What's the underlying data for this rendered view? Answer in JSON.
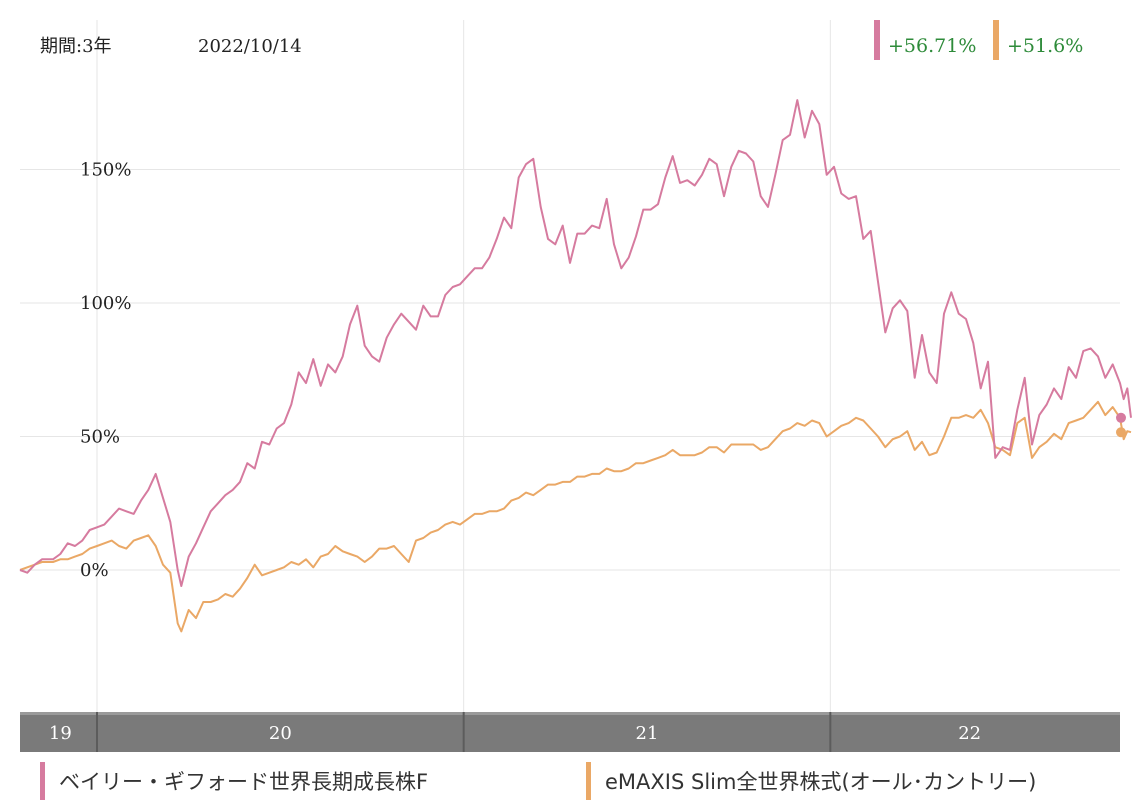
{
  "header": {
    "period_label": "期間:3年",
    "date": "2022/10/14"
  },
  "colors": {
    "fund1": "#d67b9f",
    "fund2": "#eaa866",
    "grid": "#e6e6e6",
    "positive": "#2e8b3a",
    "axis_bar": "#7a7a7a"
  },
  "chart_data": {
    "type": "line",
    "ylim": [
      -50,
      200
    ],
    "yticks": [
      0,
      50,
      100,
      150
    ],
    "ytick_labels": [
      "0%",
      "50%",
      "100%",
      "150%"
    ],
    "xlim": [
      2019.79,
      2022.79
    ],
    "year_starts": [
      2020.0,
      2021.0,
      2022.0
    ],
    "year_labels": [
      {
        "label": "19",
        "x": 2019.9
      },
      {
        "label": "20",
        "x": 2020.5
      },
      {
        "label": "21",
        "x": 2021.5
      },
      {
        "label": "22",
        "x": 2022.38
      }
    ],
    "series": [
      {
        "name": "ベイリー・ギフォード世界長期成長株F",
        "change_label": "+56.71%",
        "points": [
          [
            2019.79,
            0
          ],
          [
            2019.81,
            -1
          ],
          [
            2019.83,
            2
          ],
          [
            2019.85,
            4
          ],
          [
            2019.88,
            4
          ],
          [
            2019.9,
            6
          ],
          [
            2019.92,
            10
          ],
          [
            2019.94,
            9
          ],
          [
            2019.96,
            11
          ],
          [
            2019.98,
            15
          ],
          [
            2020.0,
            16
          ],
          [
            2020.02,
            17
          ],
          [
            2020.04,
            20
          ],
          [
            2020.06,
            23
          ],
          [
            2020.08,
            22
          ],
          [
            2020.1,
            21
          ],
          [
            2020.12,
            26
          ],
          [
            2020.14,
            30
          ],
          [
            2020.16,
            36
          ],
          [
            2020.18,
            27
          ],
          [
            2020.2,
            18
          ],
          [
            2020.22,
            0
          ],
          [
            2020.23,
            -6
          ],
          [
            2020.25,
            5
          ],
          [
            2020.27,
            10
          ],
          [
            2020.29,
            16
          ],
          [
            2020.31,
            22
          ],
          [
            2020.33,
            25
          ],
          [
            2020.35,
            28
          ],
          [
            2020.37,
            30
          ],
          [
            2020.39,
            33
          ],
          [
            2020.41,
            40
          ],
          [
            2020.43,
            38
          ],
          [
            2020.45,
            48
          ],
          [
            2020.47,
            47
          ],
          [
            2020.49,
            53
          ],
          [
            2020.51,
            55
          ],
          [
            2020.53,
            62
          ],
          [
            2020.55,
            74
          ],
          [
            2020.57,
            70
          ],
          [
            2020.59,
            79
          ],
          [
            2020.61,
            69
          ],
          [
            2020.63,
            77
          ],
          [
            2020.65,
            74
          ],
          [
            2020.67,
            80
          ],
          [
            2020.69,
            92
          ],
          [
            2020.71,
            99
          ],
          [
            2020.73,
            84
          ],
          [
            2020.75,
            80
          ],
          [
            2020.77,
            78
          ],
          [
            2020.79,
            87
          ],
          [
            2020.81,
            92
          ],
          [
            2020.83,
            96
          ],
          [
            2020.85,
            93
          ],
          [
            2020.87,
            90
          ],
          [
            2020.89,
            99
          ],
          [
            2020.91,
            95
          ],
          [
            2020.93,
            95
          ],
          [
            2020.95,
            103
          ],
          [
            2020.97,
            106
          ],
          [
            2020.99,
            107
          ],
          [
            2021.01,
            110
          ],
          [
            2021.03,
            113
          ],
          [
            2021.05,
            113
          ],
          [
            2021.07,
            117
          ],
          [
            2021.09,
            124
          ],
          [
            2021.11,
            132
          ],
          [
            2021.13,
            128
          ],
          [
            2021.15,
            147
          ],
          [
            2021.17,
            152
          ],
          [
            2021.19,
            154
          ],
          [
            2021.21,
            136
          ],
          [
            2021.23,
            124
          ],
          [
            2021.25,
            122
          ],
          [
            2021.27,
            129
          ],
          [
            2021.29,
            115
          ],
          [
            2021.31,
            126
          ],
          [
            2021.33,
            126
          ],
          [
            2021.35,
            129
          ],
          [
            2021.37,
            128
          ],
          [
            2021.39,
            139
          ],
          [
            2021.41,
            122
          ],
          [
            2021.43,
            113
          ],
          [
            2021.45,
            117
          ],
          [
            2021.47,
            125
          ],
          [
            2021.49,
            135
          ],
          [
            2021.51,
            135
          ],
          [
            2021.53,
            137
          ],
          [
            2021.55,
            147
          ],
          [
            2021.57,
            155
          ],
          [
            2021.59,
            145
          ],
          [
            2021.61,
            146
          ],
          [
            2021.63,
            144
          ],
          [
            2021.65,
            148
          ],
          [
            2021.67,
            154
          ],
          [
            2021.69,
            152
          ],
          [
            2021.71,
            140
          ],
          [
            2021.73,
            151
          ],
          [
            2021.75,
            157
          ],
          [
            2021.77,
            156
          ],
          [
            2021.79,
            153
          ],
          [
            2021.81,
            140
          ],
          [
            2021.83,
            136
          ],
          [
            2021.85,
            148
          ],
          [
            2021.87,
            161
          ],
          [
            2021.89,
            163
          ],
          [
            2021.91,
            176
          ],
          [
            2021.93,
            162
          ],
          [
            2021.95,
            172
          ],
          [
            2021.97,
            167
          ],
          [
            2021.99,
            148
          ],
          [
            2022.01,
            151
          ],
          [
            2022.03,
            141
          ],
          [
            2022.05,
            139
          ],
          [
            2022.07,
            140
          ],
          [
            2022.09,
            124
          ],
          [
            2022.11,
            127
          ],
          [
            2022.13,
            108
          ],
          [
            2022.15,
            89
          ],
          [
            2022.17,
            98
          ],
          [
            2022.19,
            101
          ],
          [
            2022.21,
            97
          ],
          [
            2022.23,
            72
          ],
          [
            2022.25,
            88
          ],
          [
            2022.27,
            74
          ],
          [
            2022.29,
            70
          ],
          [
            2022.31,
            96
          ],
          [
            2022.33,
            104
          ],
          [
            2022.35,
            96
          ],
          [
            2022.37,
            94
          ],
          [
            2022.39,
            85
          ],
          [
            2022.41,
            68
          ],
          [
            2022.43,
            78
          ],
          [
            2022.45,
            42
          ],
          [
            2022.47,
            46
          ],
          [
            2022.49,
            45
          ],
          [
            2022.51,
            60
          ],
          [
            2022.53,
            72
          ],
          [
            2022.55,
            47
          ],
          [
            2022.57,
            58
          ],
          [
            2022.59,
            62
          ],
          [
            2022.61,
            68
          ],
          [
            2022.63,
            64
          ],
          [
            2022.65,
            76
          ],
          [
            2022.67,
            72
          ],
          [
            2022.69,
            82
          ],
          [
            2022.71,
            83
          ],
          [
            2022.73,
            80
          ],
          [
            2022.75,
            72
          ],
          [
            2022.77,
            77
          ],
          [
            2022.79,
            70
          ],
          [
            2022.8,
            64
          ],
          [
            2022.81,
            68
          ],
          [
            2022.82,
            57
          ]
        ]
      },
      {
        "name": "eMAXIS Slim全世界株式(オール･カントリー)",
        "change_label": "+51.6%",
        "points": [
          [
            2019.79,
            0
          ],
          [
            2019.81,
            1
          ],
          [
            2019.83,
            2
          ],
          [
            2019.85,
            3
          ],
          [
            2019.88,
            3
          ],
          [
            2019.9,
            4
          ],
          [
            2019.92,
            4
          ],
          [
            2019.94,
            5
          ],
          [
            2019.96,
            6
          ],
          [
            2019.98,
            8
          ],
          [
            2020.0,
            9
          ],
          [
            2020.02,
            10
          ],
          [
            2020.04,
            11
          ],
          [
            2020.06,
            9
          ],
          [
            2020.08,
            8
          ],
          [
            2020.1,
            11
          ],
          [
            2020.12,
            12
          ],
          [
            2020.14,
            13
          ],
          [
            2020.16,
            9
          ],
          [
            2020.18,
            2
          ],
          [
            2020.2,
            -1
          ],
          [
            2020.22,
            -20
          ],
          [
            2020.23,
            -23
          ],
          [
            2020.25,
            -15
          ],
          [
            2020.27,
            -18
          ],
          [
            2020.29,
            -12
          ],
          [
            2020.31,
            -12
          ],
          [
            2020.33,
            -11
          ],
          [
            2020.35,
            -9
          ],
          [
            2020.37,
            -10
          ],
          [
            2020.39,
            -7
          ],
          [
            2020.41,
            -3
          ],
          [
            2020.43,
            2
          ],
          [
            2020.45,
            -2
          ],
          [
            2020.47,
            -1
          ],
          [
            2020.49,
            0
          ],
          [
            2020.51,
            1
          ],
          [
            2020.53,
            3
          ],
          [
            2020.55,
            2
          ],
          [
            2020.57,
            4
          ],
          [
            2020.59,
            1
          ],
          [
            2020.61,
            5
          ],
          [
            2020.63,
            6
          ],
          [
            2020.65,
            9
          ],
          [
            2020.67,
            7
          ],
          [
            2020.69,
            6
          ],
          [
            2020.71,
            5
          ],
          [
            2020.73,
            3
          ],
          [
            2020.75,
            5
          ],
          [
            2020.77,
            8
          ],
          [
            2020.79,
            8
          ],
          [
            2020.81,
            9
          ],
          [
            2020.83,
            6
          ],
          [
            2020.85,
            3
          ],
          [
            2020.87,
            11
          ],
          [
            2020.89,
            12
          ],
          [
            2020.91,
            14
          ],
          [
            2020.93,
            15
          ],
          [
            2020.95,
            17
          ],
          [
            2020.97,
            18
          ],
          [
            2020.99,
            17
          ],
          [
            2021.01,
            19
          ],
          [
            2021.03,
            21
          ],
          [
            2021.05,
            21
          ],
          [
            2021.07,
            22
          ],
          [
            2021.09,
            22
          ],
          [
            2021.11,
            23
          ],
          [
            2021.13,
            26
          ],
          [
            2021.15,
            27
          ],
          [
            2021.17,
            29
          ],
          [
            2021.19,
            28
          ],
          [
            2021.21,
            30
          ],
          [
            2021.23,
            32
          ],
          [
            2021.25,
            32
          ],
          [
            2021.27,
            33
          ],
          [
            2021.29,
            33
          ],
          [
            2021.31,
            35
          ],
          [
            2021.33,
            35
          ],
          [
            2021.35,
            36
          ],
          [
            2021.37,
            36
          ],
          [
            2021.39,
            38
          ],
          [
            2021.41,
            37
          ],
          [
            2021.43,
            37
          ],
          [
            2021.45,
            38
          ],
          [
            2021.47,
            40
          ],
          [
            2021.49,
            40
          ],
          [
            2021.51,
            41
          ],
          [
            2021.53,
            42
          ],
          [
            2021.55,
            43
          ],
          [
            2021.57,
            45
          ],
          [
            2021.59,
            43
          ],
          [
            2021.61,
            43
          ],
          [
            2021.63,
            43
          ],
          [
            2021.65,
            44
          ],
          [
            2021.67,
            46
          ],
          [
            2021.69,
            46
          ],
          [
            2021.71,
            44
          ],
          [
            2021.73,
            47
          ],
          [
            2021.75,
            47
          ],
          [
            2021.77,
            47
          ],
          [
            2021.79,
            47
          ],
          [
            2021.81,
            45
          ],
          [
            2021.83,
            46
          ],
          [
            2021.85,
            49
          ],
          [
            2021.87,
            52
          ],
          [
            2021.89,
            53
          ],
          [
            2021.91,
            55
          ],
          [
            2021.93,
            54
          ],
          [
            2021.95,
            56
          ],
          [
            2021.97,
            55
          ],
          [
            2021.99,
            50
          ],
          [
            2022.01,
            52
          ],
          [
            2022.03,
            54
          ],
          [
            2022.05,
            55
          ],
          [
            2022.07,
            57
          ],
          [
            2022.09,
            56
          ],
          [
            2022.11,
            53
          ],
          [
            2022.13,
            50
          ],
          [
            2022.15,
            46
          ],
          [
            2022.17,
            49
          ],
          [
            2022.19,
            50
          ],
          [
            2022.21,
            52
          ],
          [
            2022.23,
            45
          ],
          [
            2022.25,
            48
          ],
          [
            2022.27,
            43
          ],
          [
            2022.29,
            44
          ],
          [
            2022.31,
            50
          ],
          [
            2022.33,
            57
          ],
          [
            2022.35,
            57
          ],
          [
            2022.37,
            58
          ],
          [
            2022.39,
            57
          ],
          [
            2022.41,
            60
          ],
          [
            2022.43,
            55
          ],
          [
            2022.45,
            46
          ],
          [
            2022.47,
            45
          ],
          [
            2022.49,
            43
          ],
          [
            2022.51,
            55
          ],
          [
            2022.53,
            57
          ],
          [
            2022.55,
            42
          ],
          [
            2022.57,
            46
          ],
          [
            2022.59,
            48
          ],
          [
            2022.61,
            51
          ],
          [
            2022.63,
            49
          ],
          [
            2022.65,
            55
          ],
          [
            2022.67,
            56
          ],
          [
            2022.69,
            57
          ],
          [
            2022.71,
            60
          ],
          [
            2022.73,
            63
          ],
          [
            2022.75,
            58
          ],
          [
            2022.77,
            61
          ],
          [
            2022.79,
            57
          ],
          [
            2022.8,
            49
          ],
          [
            2022.81,
            52
          ],
          [
            2022.82,
            51.6
          ]
        ]
      }
    ]
  }
}
